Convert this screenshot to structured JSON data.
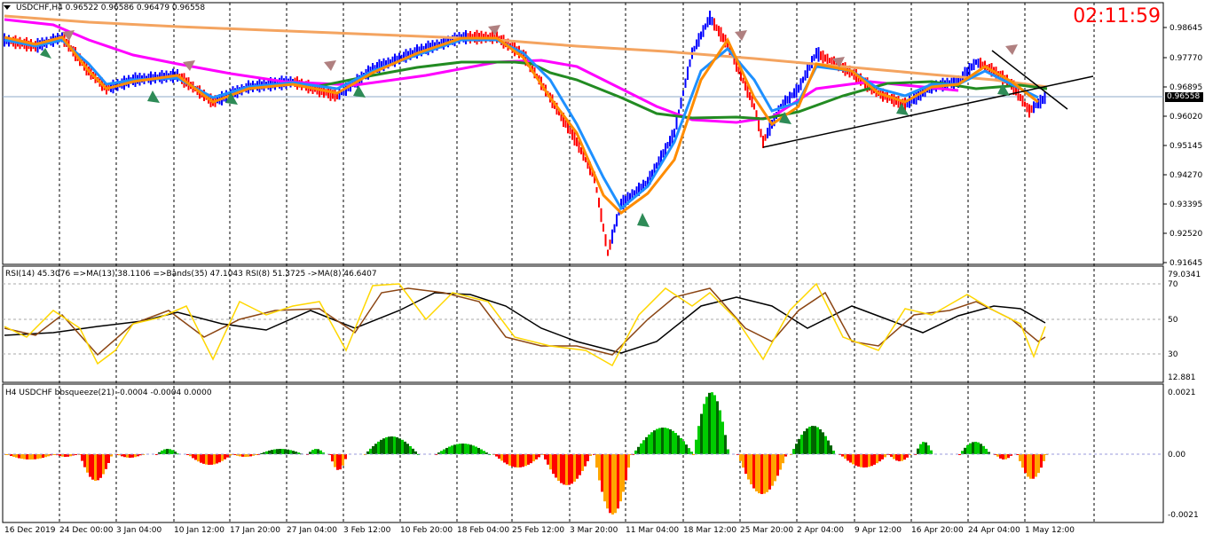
{
  "header": {
    "symbol_line": "USDCHF,H4  0.96522 0.96586 0.96479 0.96558",
    "clock": "02:11:59"
  },
  "price_axis": {
    "ticks": [
      "0.98645",
      "0.97770",
      "0.96895",
      "0.96020",
      "0.95145",
      "0.94270",
      "0.93395",
      "0.92520",
      "0.91645"
    ],
    "current": "0.96558"
  },
  "rsi_panel": {
    "label": "RSI(14) 45.3076  =>MA(13) 38.1106  =>Bands(35) 47.1043  RSI(8) 51.3725  ->MA(8) 46.6407",
    "ticks": [
      "79.0341",
      "70",
      "50",
      "30",
      "12.881"
    ]
  },
  "squeeze_panel": {
    "label": "H4 USDCHF bbsqueeze(21) -0.0004 -0.0004 0.0000",
    "ticks": [
      "0.0021",
      "0.00",
      "-0.0021"
    ]
  },
  "time_axis": {
    "labels": [
      "16 Dec 2019",
      "24 Dec 00:00",
      "3 Jan 04:00",
      "10 Jan 12:00",
      "17 Jan 20:00",
      "27 Jan 04:00",
      "3 Feb 12:00",
      "10 Feb 20:00",
      "18 Feb 04:00",
      "25 Feb 12:00",
      "3 Mar 20:00",
      "11 Mar 04:00",
      "18 Mar 12:00",
      "25 Mar 20:00",
      "2 Apr 04:00",
      "9 Apr 12:00",
      "16 Apr 20:00",
      "24 Apr 04:00",
      "1 May 12:00"
    ]
  },
  "colors": {
    "bull": "#0000ff",
    "bear": "#ff0000",
    "fast_ma": "#ff8c00",
    "cyan_ma": "#1e90ff",
    "magenta_ma": "#ff00ff",
    "slow_ma": "#f4a460",
    "green_ma": "#228b22"
  }
}
